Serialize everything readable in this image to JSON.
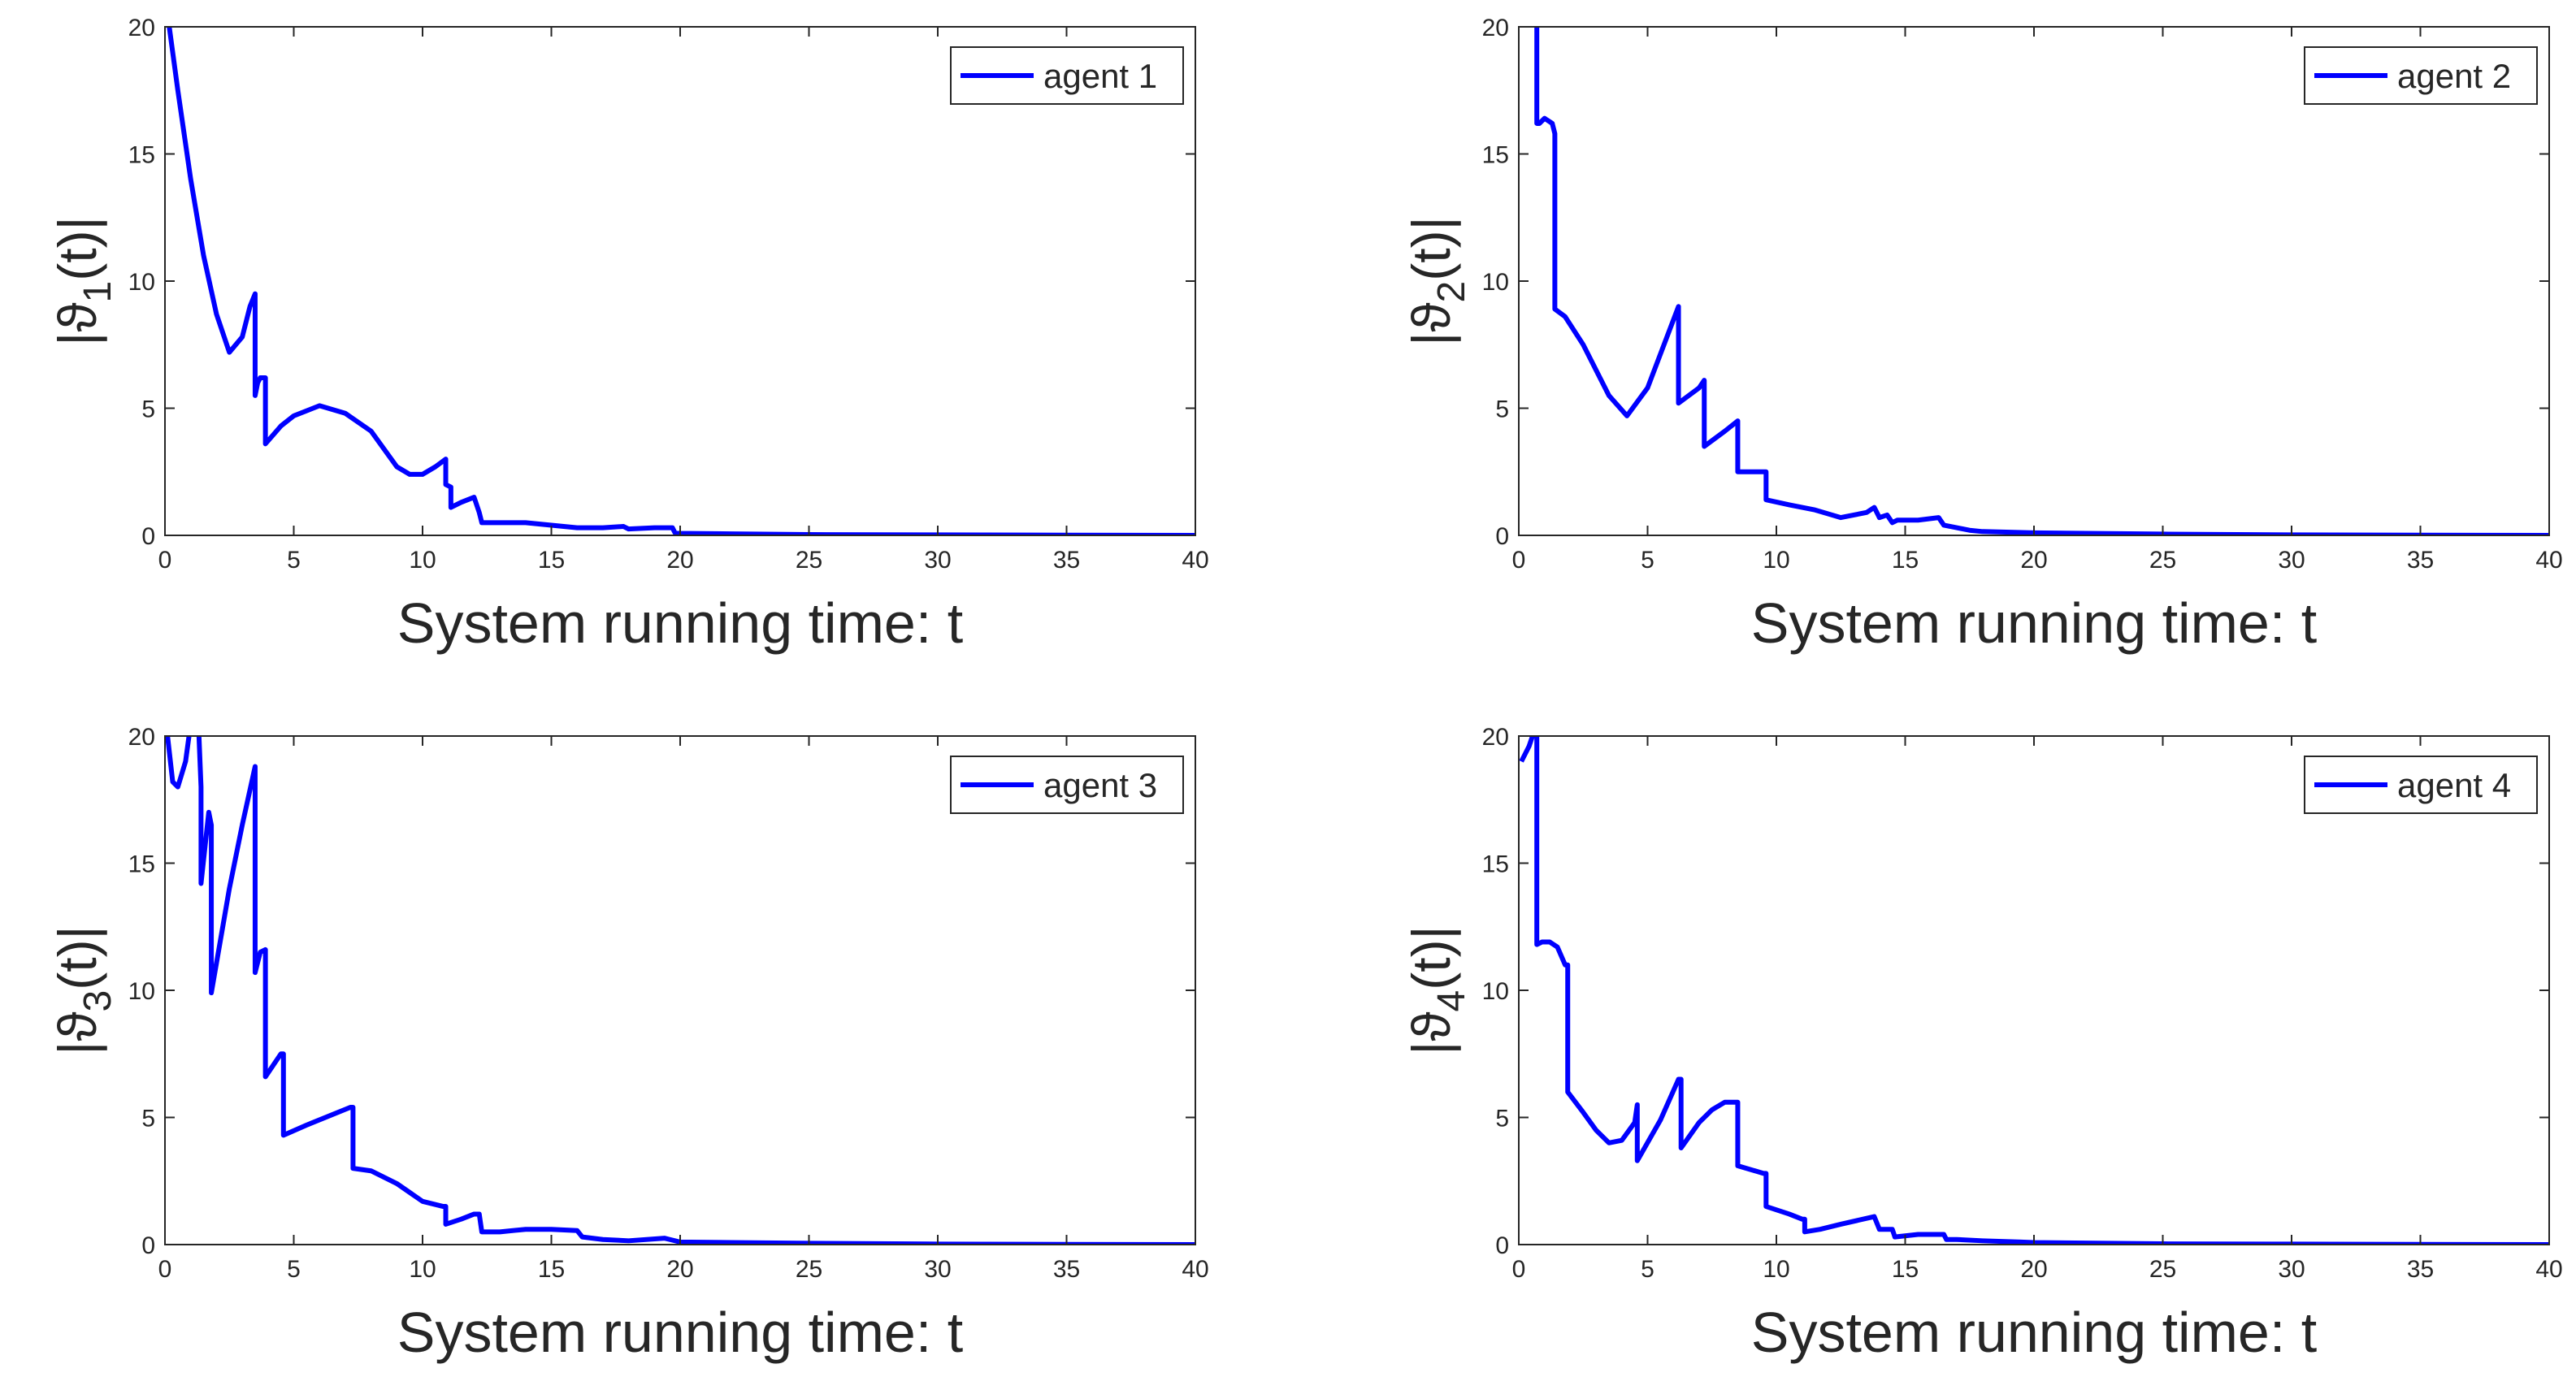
{
  "colors": {
    "series": "#0000ff",
    "axes": "#262626",
    "grid": "#262626",
    "background": "#ffffff"
  },
  "chart_data": [
    {
      "type": "line",
      "xlabel": "System running time: t",
      "ylabel": {
        "prefix": "|ϑ",
        "subscript": "1",
        "suffix": "(t)|"
      },
      "xlim": [
        0,
        40
      ],
      "ylim": [
        0,
        20
      ],
      "xticks": [
        0,
        5,
        10,
        15,
        20,
        25,
        30,
        35,
        40
      ],
      "yticks": [
        0,
        5,
        10,
        15,
        20
      ],
      "grid": false,
      "legend_position": "top-right",
      "series": [
        {
          "name": "agent 1",
          "x": [
            0.1,
            0.5,
            1.0,
            1.5,
            2.0,
            2.5,
            3.0,
            3.3,
            3.5,
            3.5,
            3.6,
            3.7,
            3.9,
            3.9,
            4.5,
            5.0,
            6.0,
            7.0,
            8.0,
            9.0,
            9.5,
            10.0,
            10.5,
            10.9,
            10.9,
            11.1,
            11.1,
            11.5,
            12.0,
            12.2,
            12.3,
            13.0,
            14.0,
            15.0,
            16.0,
            17.0,
            17.8,
            18.0,
            19.0,
            19.7,
            19.8,
            20.0,
            22.0,
            25.0,
            30.0,
            35.0,
            40.0
          ],
          "values": [
            20.5,
            17.5,
            14.0,
            11.0,
            8.7,
            7.2,
            7.8,
            9.0,
            9.5,
            5.5,
            6.0,
            6.2,
            6.2,
            3.6,
            4.3,
            4.7,
            5.1,
            4.8,
            4.1,
            2.7,
            2.4,
            2.4,
            2.7,
            3.0,
            2.0,
            1.9,
            1.1,
            1.3,
            1.5,
            0.9,
            0.5,
            0.5,
            0.5,
            0.4,
            0.3,
            0.3,
            0.35,
            0.25,
            0.3,
            0.3,
            0.1,
            0.08,
            0.06,
            0.03,
            0.02,
            0.01,
            0.0
          ]
        }
      ]
    },
    {
      "type": "line",
      "xlabel": "System running time: t",
      "ylabel": {
        "prefix": "|ϑ",
        "subscript": "2",
        "suffix": "(t)|"
      },
      "xlim": [
        0,
        40
      ],
      "ylim": [
        0,
        20
      ],
      "xticks": [
        0,
        5,
        10,
        15,
        20,
        25,
        30,
        35,
        40
      ],
      "yticks": [
        0,
        5,
        10,
        15,
        20
      ],
      "grid": false,
      "legend_position": "top-right",
      "series": [
        {
          "name": "agent 2",
          "x": [
            0.7,
            0.7,
            0.8,
            1.0,
            1.3,
            1.4,
            1.4,
            1.8,
            2.5,
            3.5,
            4.2,
            5.0,
            6.2,
            6.2,
            7.0,
            7.2,
            7.2,
            8.0,
            8.5,
            8.5,
            9.4,
            9.6,
            9.6,
            10.5,
            11.5,
            12.5,
            13.5,
            13.8,
            14.0,
            14.3,
            14.5,
            14.7,
            15.5,
            16.3,
            16.5,
            17.0,
            17.5,
            18.0,
            20.0,
            22.0,
            25.0,
            30.0,
            35.0,
            40.0
          ],
          "values": [
            21.0,
            16.2,
            16.2,
            16.4,
            16.2,
            15.8,
            8.9,
            8.6,
            7.5,
            5.5,
            4.7,
            5.8,
            9.0,
            5.2,
            5.8,
            6.1,
            3.5,
            4.1,
            4.5,
            2.5,
            2.5,
            2.5,
            1.4,
            1.2,
            1.0,
            0.7,
            0.9,
            1.1,
            0.7,
            0.8,
            0.5,
            0.6,
            0.6,
            0.7,
            0.4,
            0.3,
            0.2,
            0.15,
            0.1,
            0.08,
            0.05,
            0.02,
            0.01,
            0.0
          ]
        }
      ]
    },
    {
      "type": "line",
      "xlabel": "System running time: t",
      "ylabel": {
        "prefix": "|ϑ",
        "subscript": "3",
        "suffix": "(t)|"
      },
      "xlim": [
        0,
        40
      ],
      "ylim": [
        0,
        20
      ],
      "xticks": [
        0,
        5,
        10,
        15,
        20,
        25,
        30,
        35,
        40
      ],
      "yticks": [
        0,
        5,
        10,
        15,
        20
      ],
      "grid": false,
      "legend_position": "top-right",
      "series": [
        {
          "name": "agent 3",
          "x": [
            0.1,
            0.3,
            0.5,
            0.8,
            1.0,
            1.3,
            1.4,
            1.4,
            1.7,
            1.8,
            1.8,
            2.5,
            3.0,
            3.5,
            3.5,
            3.7,
            3.9,
            3.9,
            4.5,
            4.6,
            4.6,
            5.5,
            7.2,
            7.3,
            7.3,
            8.0,
            9.0,
            10.0,
            10.8,
            10.9,
            10.9,
            11.5,
            12.0,
            12.2,
            12.3,
            13.0,
            14.0,
            15.0,
            16.0,
            16.2,
            17.0,
            18.0,
            19.4,
            19.6,
            20.0,
            22.0,
            25.0,
            30.0,
            35.0,
            40.0
          ],
          "values": [
            20.0,
            18.2,
            18.0,
            19.0,
            20.5,
            20.5,
            18.0,
            14.2,
            17.0,
            16.5,
            9.9,
            14.0,
            16.5,
            18.8,
            10.7,
            11.5,
            11.6,
            6.6,
            7.5,
            7.5,
            4.3,
            4.7,
            5.4,
            5.4,
            3.0,
            2.9,
            2.4,
            1.7,
            1.5,
            1.5,
            0.8,
            1.0,
            1.2,
            1.2,
            0.5,
            0.5,
            0.6,
            0.6,
            0.55,
            0.3,
            0.2,
            0.15,
            0.25,
            0.2,
            0.1,
            0.08,
            0.05,
            0.02,
            0.01,
            0.0
          ]
        }
      ]
    },
    {
      "type": "line",
      "xlabel": "System running time: t",
      "ylabel": {
        "prefix": "|ϑ",
        "subscript": "4",
        "suffix": "(t)|"
      },
      "xlim": [
        0,
        40
      ],
      "ylim": [
        0,
        20
      ],
      "xticks": [
        0,
        5,
        10,
        15,
        20,
        25,
        30,
        35,
        40
      ],
      "yticks": [
        0,
        5,
        10,
        15,
        20
      ],
      "grid": false,
      "legend_position": "top-right",
      "series": [
        {
          "name": "agent 4",
          "x": [
            0.1,
            0.4,
            0.7,
            0.7,
            0.9,
            1.2,
            1.5,
            1.8,
            1.9,
            1.9,
            2.5,
            3.0,
            3.5,
            4.0,
            4.5,
            4.6,
            4.6,
            5.5,
            6.2,
            6.3,
            6.3,
            7.0,
            7.5,
            8.0,
            8.5,
            8.5,
            9.5,
            9.6,
            9.6,
            10.5,
            11.0,
            11.1,
            11.1,
            11.7,
            12.5,
            13.8,
            14.0,
            14.5,
            14.6,
            15.5,
            16.5,
            16.6,
            17.0,
            18.0,
            19.5,
            20.0,
            22.0,
            25.0,
            30.0,
            35.0,
            40.0
          ],
          "values": [
            19.0,
            19.6,
            20.5,
            11.8,
            11.9,
            11.9,
            11.7,
            11.0,
            11.0,
            6.0,
            5.2,
            4.5,
            4.0,
            4.1,
            4.8,
            5.5,
            3.3,
            4.9,
            6.5,
            6.5,
            3.8,
            4.8,
            5.3,
            5.6,
            5.6,
            3.1,
            2.8,
            2.8,
            1.5,
            1.2,
            1.0,
            1.0,
            0.5,
            0.6,
            0.8,
            1.1,
            0.6,
            0.6,
            0.3,
            0.4,
            0.4,
            0.2,
            0.2,
            0.15,
            0.1,
            0.08,
            0.06,
            0.03,
            0.02,
            0.01,
            0.0
          ]
        }
      ]
    }
  ]
}
